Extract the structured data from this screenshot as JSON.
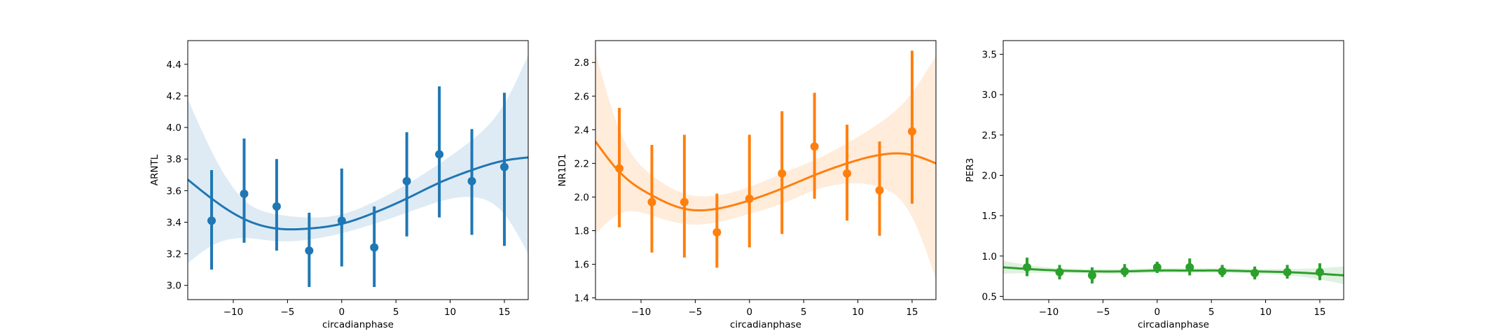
{
  "chart_data": [
    {
      "type": "scatter",
      "xlabel": "circadianphase",
      "ylabel": "ARNTL",
      "color": "#1f77b4",
      "xlim": [
        -14.2,
        17.2
      ],
      "ylim": [
        2.91,
        4.55
      ],
      "xticks": [
        -10,
        -5,
        0,
        5,
        10,
        15
      ],
      "yticks": [
        3.0,
        3.2,
        3.4,
        3.6,
        3.8,
        4.0,
        4.2,
        4.4
      ],
      "ytick_decimals": 1,
      "points": {
        "x": [
          -12,
          -9,
          -6,
          -3,
          0,
          3,
          6,
          9,
          12,
          15
        ],
        "y": [
          3.41,
          3.58,
          3.5,
          3.22,
          3.41,
          3.24,
          3.66,
          3.83,
          3.66,
          3.75
        ],
        "err_low": [
          3.1,
          3.27,
          3.22,
          2.99,
          3.12,
          2.99,
          3.31,
          3.43,
          3.32,
          3.25
        ],
        "err_high": [
          3.73,
          3.93,
          3.8,
          3.46,
          3.74,
          3.5,
          3.97,
          4.26,
          3.99,
          4.22
        ]
      },
      "fit": {
        "x": [
          -14.2,
          -12,
          -9,
          -6,
          -3,
          0,
          3,
          6,
          9,
          12,
          15,
          17.2
        ],
        "y": [
          3.67,
          3.55,
          3.42,
          3.36,
          3.36,
          3.39,
          3.46,
          3.55,
          3.65,
          3.73,
          3.79,
          3.81
        ],
        "ci_low": [
          3.14,
          3.25,
          3.3,
          3.28,
          3.29,
          3.33,
          3.39,
          3.46,
          3.53,
          3.56,
          3.45,
          3.2
        ],
        "ci_high": [
          4.18,
          3.85,
          3.54,
          3.45,
          3.43,
          3.45,
          3.53,
          3.64,
          3.77,
          3.92,
          4.15,
          4.46
        ]
      }
    },
    {
      "type": "scatter",
      "xlabel": "circadianphase",
      "ylabel": "NR1D1",
      "color": "#ff7f0e",
      "xlim": [
        -14.2,
        17.2
      ],
      "ylim": [
        1.39,
        2.93
      ],
      "xticks": [
        -10,
        -5,
        0,
        5,
        10,
        15
      ],
      "yticks": [
        1.4,
        1.6,
        1.8,
        2.0,
        2.2,
        2.4,
        2.6,
        2.8
      ],
      "ytick_decimals": 1,
      "points": {
        "x": [
          -12,
          -9,
          -6,
          -3,
          0,
          3,
          6,
          9,
          12,
          15
        ],
        "y": [
          2.17,
          1.97,
          1.97,
          1.79,
          1.99,
          2.14,
          2.3,
          2.14,
          2.04,
          2.39
        ],
        "err_low": [
          1.82,
          1.67,
          1.64,
          1.58,
          1.7,
          1.78,
          1.99,
          1.86,
          1.77,
          1.96
        ],
        "err_high": [
          2.53,
          2.31,
          2.37,
          2.02,
          2.37,
          2.51,
          2.62,
          2.43,
          2.33,
          2.87
        ]
      },
      "fit": {
        "x": [
          -14.2,
          -12,
          -9,
          -6,
          -3,
          0,
          3,
          6,
          9,
          12,
          15,
          17.2
        ],
        "y": [
          2.33,
          2.15,
          2.01,
          1.93,
          1.93,
          1.98,
          2.05,
          2.13,
          2.2,
          2.25,
          2.25,
          2.2
        ],
        "ci_low": [
          1.78,
          1.9,
          1.89,
          1.84,
          1.85,
          1.9,
          1.96,
          2.04,
          2.08,
          2.06,
          1.88,
          1.51
        ],
        "ci_high": [
          2.86,
          2.4,
          2.13,
          2.02,
          2.01,
          2.06,
          2.14,
          2.22,
          2.32,
          2.44,
          2.62,
          2.84
        ]
      }
    },
    {
      "type": "scatter",
      "xlabel": "circadianphase",
      "ylabel": "PER3",
      "color": "#2ca02c",
      "xlim": [
        -14.2,
        17.2
      ],
      "ylim": [
        0.46,
        3.67
      ],
      "xticks": [
        -10,
        -5,
        0,
        5,
        10,
        15
      ],
      "yticks": [
        0.5,
        1.0,
        1.5,
        2.0,
        2.5,
        3.0,
        3.5
      ],
      "ytick_decimals": 1,
      "points": {
        "x": [
          -12,
          -9,
          -6,
          -3,
          0,
          3,
          6,
          9,
          12,
          15
        ],
        "y": [
          0.86,
          0.8,
          0.76,
          0.81,
          0.86,
          0.86,
          0.81,
          0.79,
          0.8,
          0.8
        ],
        "err_low": [
          0.75,
          0.71,
          0.66,
          0.74,
          0.79,
          0.76,
          0.74,
          0.71,
          0.72,
          0.7
        ],
        "err_high": [
          0.98,
          0.89,
          0.86,
          0.9,
          0.93,
          0.97,
          0.89,
          0.87,
          0.89,
          0.91
        ]
      },
      "fit": {
        "x": [
          -14.2,
          -12,
          -9,
          -6,
          -3,
          0,
          3,
          6,
          9,
          12,
          15,
          17.2
        ],
        "y": [
          0.86,
          0.84,
          0.82,
          0.81,
          0.81,
          0.82,
          0.82,
          0.82,
          0.81,
          0.8,
          0.78,
          0.76
        ],
        "ci_low": [
          0.78,
          0.79,
          0.79,
          0.78,
          0.78,
          0.79,
          0.79,
          0.79,
          0.78,
          0.76,
          0.71,
          0.65
        ],
        "ci_high": [
          0.94,
          0.89,
          0.85,
          0.84,
          0.84,
          0.85,
          0.85,
          0.85,
          0.84,
          0.84,
          0.85,
          0.87
        ]
      }
    }
  ]
}
